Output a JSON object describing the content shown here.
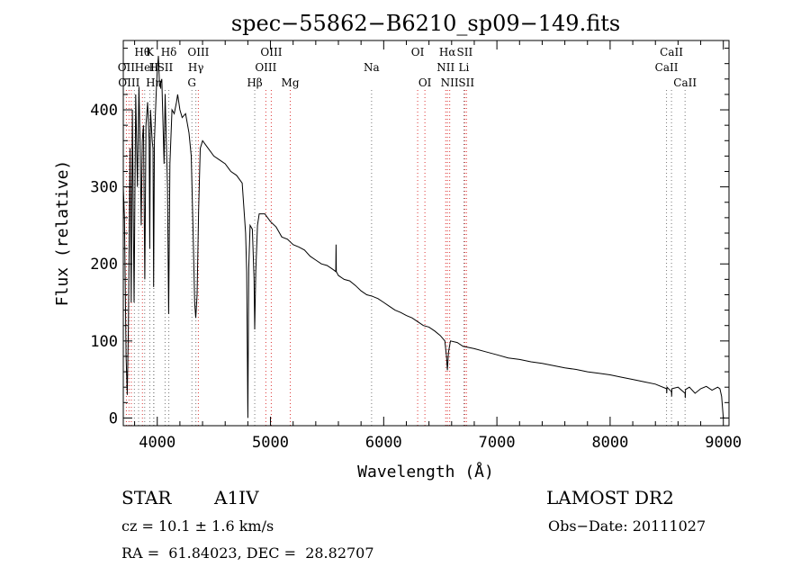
{
  "chart_data": {
    "type": "line",
    "title": "spec−55862−B6210_sp09−149.fits",
    "xlabel": "Wavelength (Å)",
    "ylabel": "Flux (relative)",
    "xlim": [
      3700,
      9050
    ],
    "ylim": [
      -10,
      490
    ],
    "xticks": [
      4000,
      5000,
      6000,
      7000,
      8000,
      9000
    ],
    "yticks": [
      0,
      100,
      200,
      300,
      400
    ],
    "grid": false,
    "series": [
      {
        "color": "#000000",
        "points": [
          [
            3700,
            300
          ],
          [
            3710,
            260
          ],
          [
            3725,
            80
          ],
          [
            3735,
            30
          ],
          [
            3745,
            120
          ],
          [
            3760,
            350
          ],
          [
            3770,
            150
          ],
          [
            3780,
            400
          ],
          [
            3795,
            150
          ],
          [
            3810,
            420
          ],
          [
            3825,
            300
          ],
          [
            3838,
            430
          ],
          [
            3850,
            340
          ],
          [
            3858,
            250
          ],
          [
            3868,
            360
          ],
          [
            3878,
            380
          ],
          [
            3890,
            180
          ],
          [
            3900,
            380
          ],
          [
            3915,
            410
          ],
          [
            3928,
            360
          ],
          [
            3934,
            220
          ],
          [
            3940,
            400
          ],
          [
            3955,
            360
          ],
          [
            3962,
            350
          ],
          [
            3968,
            170
          ],
          [
            3975,
            360
          ],
          [
            3990,
            420
          ],
          [
            4000,
            450
          ],
          [
            4010,
            470
          ],
          [
            4020,
            430
          ],
          [
            4040,
            440
          ],
          [
            4060,
            330
          ],
          [
            4070,
            420
          ],
          [
            4080,
            360
          ],
          [
            4090,
            300
          ],
          [
            4101,
            135
          ],
          [
            4112,
            330
          ],
          [
            4130,
            400
          ],
          [
            4150,
            395
          ],
          [
            4170,
            410
          ],
          [
            4180,
            420
          ],
          [
            4200,
            400
          ],
          [
            4220,
            390
          ],
          [
            4250,
            395
          ],
          [
            4280,
            370
          ],
          [
            4300,
            340
          ],
          [
            4320,
            220
          ],
          [
            4330,
            150
          ],
          [
            4340,
            130
          ],
          [
            4352,
            160
          ],
          [
            4365,
            270
          ],
          [
            4380,
            350
          ],
          [
            4400,
            360
          ],
          [
            4450,
            350
          ],
          [
            4500,
            340
          ],
          [
            4550,
            335
          ],
          [
            4600,
            330
          ],
          [
            4650,
            320
          ],
          [
            4700,
            315
          ],
          [
            4750,
            305
          ],
          [
            4780,
            240
          ],
          [
            4790,
            190
          ],
          [
            4800,
            0
          ],
          [
            4808,
            195
          ],
          [
            4820,
            250
          ],
          [
            4840,
            245
          ],
          [
            4855,
            180
          ],
          [
            4861,
            115
          ],
          [
            4870,
            190
          ],
          [
            4885,
            250
          ],
          [
            4900,
            265
          ],
          [
            4950,
            265
          ],
          [
            5000,
            255
          ],
          [
            5050,
            248
          ],
          [
            5100,
            235
          ],
          [
            5150,
            232
          ],
          [
            5200,
            225
          ],
          [
            5250,
            222
          ],
          [
            5300,
            218
          ],
          [
            5350,
            210
          ],
          [
            5400,
            205
          ],
          [
            5450,
            200
          ],
          [
            5500,
            198
          ],
          [
            5550,
            193
          ],
          [
            5577,
            190
          ],
          [
            5579,
            225
          ],
          [
            5582,
            190
          ],
          [
            5600,
            185
          ],
          [
            5650,
            180
          ],
          [
            5700,
            178
          ],
          [
            5750,
            172
          ],
          [
            5800,
            165
          ],
          [
            5850,
            160
          ],
          [
            5900,
            158
          ],
          [
            5950,
            155
          ],
          [
            6000,
            150
          ],
          [
            6050,
            145
          ],
          [
            6100,
            140
          ],
          [
            6150,
            137
          ],
          [
            6200,
            133
          ],
          [
            6250,
            130
          ],
          [
            6300,
            125
          ],
          [
            6350,
            120
          ],
          [
            6400,
            118
          ],
          [
            6450,
            113
          ],
          [
            6500,
            107
          ],
          [
            6540,
            100
          ],
          [
            6555,
            80
          ],
          [
            6563,
            62
          ],
          [
            6572,
            85
          ],
          [
            6590,
            100
          ],
          [
            6650,
            98
          ],
          [
            6700,
            93
          ],
          [
            6800,
            90
          ],
          [
            6900,
            86
          ],
          [
            7000,
            82
          ],
          [
            7100,
            78
          ],
          [
            7200,
            76
          ],
          [
            7300,
            73
          ],
          [
            7400,
            71
          ],
          [
            7500,
            68
          ],
          [
            7600,
            65
          ],
          [
            7700,
            63
          ],
          [
            7800,
            60
          ],
          [
            7900,
            58
          ],
          [
            8000,
            56
          ],
          [
            8100,
            53
          ],
          [
            8200,
            50
          ],
          [
            8300,
            47
          ],
          [
            8400,
            44
          ],
          [
            8498,
            38
          ],
          [
            8500,
            32
          ],
          [
            8502,
            40
          ],
          [
            8542,
            34
          ],
          [
            8544,
            28
          ],
          [
            8546,
            38
          ],
          [
            8600,
            40
          ],
          [
            8662,
            32
          ],
          [
            8664,
            26
          ],
          [
            8666,
            37
          ],
          [
            8700,
            40
          ],
          [
            8750,
            32
          ],
          [
            8800,
            38
          ],
          [
            8850,
            41
          ],
          [
            8900,
            36
          ],
          [
            8950,
            40
          ],
          [
            8970,
            38
          ],
          [
            8985,
            28
          ],
          [
            9000,
            0
          ]
        ]
      }
    ],
    "line_markers": [
      {
        "x": 3727,
        "color": "#d33",
        "label": "OII",
        "row": 2
      },
      {
        "x": 3750,
        "color": "#d33",
        "label": "OIII",
        "row": 3
      },
      {
        "x": 3771,
        "color": "#d33"
      },
      {
        "x": 3798,
        "color": "#777"
      },
      {
        "x": 3835,
        "color": "#777"
      },
      {
        "x": 3869,
        "color": "#d33",
        "label": "Hθ",
        "row": 1
      },
      {
        "x": 3889,
        "color": "#777",
        "label": "HeI",
        "row": 2
      },
      {
        "x": 3934,
        "color": "#777",
        "label": "K",
        "row": 1
      },
      {
        "x": 3968,
        "color": "#777",
        "label": "H",
        "row": 2
      },
      {
        "x": 3970,
        "color": "#777",
        "label": "Hη",
        "row": 3
      },
      {
        "x": 4069,
        "color": "#777",
        "label": "SII",
        "row": 2
      },
      {
        "x": 4102,
        "color": "#777",
        "label": "Hδ",
        "row": 1
      },
      {
        "x": 4306,
        "color": "#777",
        "label": "G",
        "row": 3
      },
      {
        "x": 4341,
        "color": "#777",
        "label": "Hγ",
        "row": 2
      },
      {
        "x": 4363,
        "color": "#d33",
        "label": "OIII",
        "row": 1
      },
      {
        "x": 4861,
        "color": "#777",
        "label": "Hβ",
        "row": 3
      },
      {
        "x": 4959,
        "color": "#d33",
        "label": "OIII",
        "row": 2
      },
      {
        "x": 5007,
        "color": "#d33",
        "label": "OIII",
        "row": 1
      },
      {
        "x": 5175,
        "color": "#d33",
        "label": "Mg",
        "row": 3
      },
      {
        "x": 5893,
        "color": "#777",
        "label": "Na",
        "row": 2
      },
      {
        "x": 6300,
        "color": "#d33",
        "label": "OI",
        "row": 1
      },
      {
        "x": 6364,
        "color": "#d33",
        "label": "OI",
        "row": 3
      },
      {
        "x": 6548,
        "color": "#d33",
        "label": "NII",
        "row": 2
      },
      {
        "x": 6563,
        "color": "#d33",
        "label": "Hα",
        "row": 1
      },
      {
        "x": 6583,
        "color": "#d33",
        "label": "NII",
        "row": 3
      },
      {
        "x": 6708,
        "color": "#777",
        "label": "Li",
        "row": 2
      },
      {
        "x": 6716,
        "color": "#d33",
        "label": "SII",
        "row": 1
      },
      {
        "x": 6731,
        "color": "#d33",
        "label": "SII",
        "row": 3
      },
      {
        "x": 8498,
        "color": "#777",
        "label": "CaII",
        "row": 2
      },
      {
        "x": 8542,
        "color": "#777",
        "label": "CaII",
        "row": 1
      },
      {
        "x": 8662,
        "color": "#777",
        "label": "CaII",
        "row": 3
      }
    ]
  },
  "info": {
    "object_type": "STAR",
    "subclass": "A1IV",
    "survey": "LAMOST DR2",
    "cz": "cz = 10.1 ± 1.6 km/s",
    "obs_date": "Obs−Date: 20111027",
    "coords": "RA =  61.84023, DEC =  28.82707"
  }
}
